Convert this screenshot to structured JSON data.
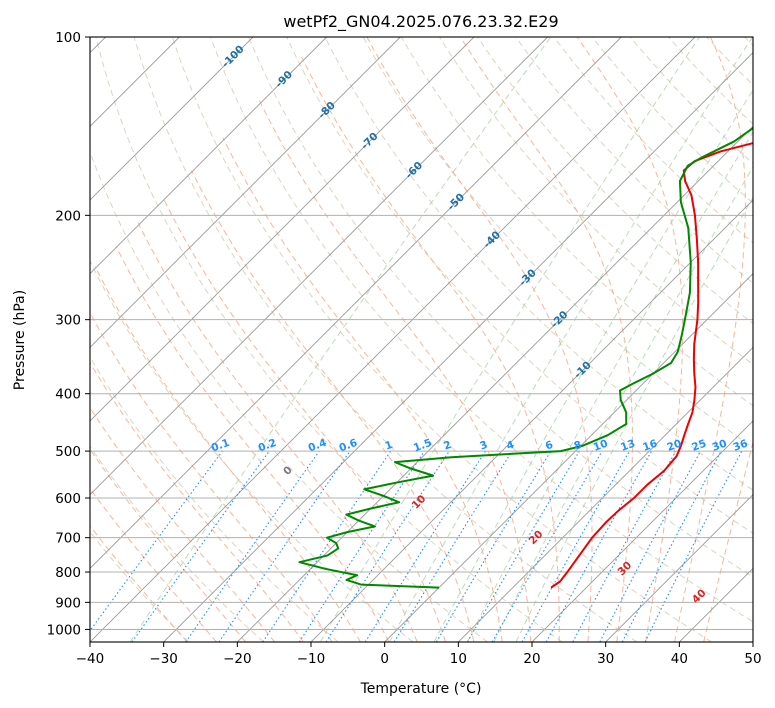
{
  "chart_data": {
    "type": "line",
    "title": "wetPf2_GN04.2025.076.23.32.E29",
    "xlabel": "Temperature (°C)",
    "ylabel": "Pressure (hPa)",
    "xlim": [
      -40,
      50
    ],
    "ylim": [
      1050,
      100
    ],
    "y_scale": "log",
    "grid": true,
    "x_ticks": [
      -40,
      -30,
      -20,
      -10,
      0,
      10,
      20,
      30,
      40,
      50
    ],
    "y_ticks": [
      100,
      200,
      300,
      400,
      500,
      600,
      700,
      800,
      900,
      1000
    ],
    "isotherm_labels": [
      "-100",
      "-90",
      "-80",
      "-70",
      "-60",
      "-50",
      "-40",
      "-30",
      "-20",
      "-10"
    ],
    "isotherm_label_values": [
      -100,
      -90,
      -80,
      -70,
      -60,
      -50,
      -40,
      -30,
      -20,
      -10
    ],
    "mixing_ratio_labels": [
      "0.1",
      "0.2",
      "0.4",
      "0.6",
      "1",
      "1.5",
      "2",
      "3",
      "4",
      "6",
      "8",
      "10",
      "13",
      "16",
      "20",
      "25",
      "30",
      "36"
    ],
    "mixing_ratio_values": [
      0.1,
      0.2,
      0.4,
      0.6,
      1,
      1.5,
      2,
      3,
      4,
      6,
      8,
      10,
      13,
      16,
      20,
      25,
      30,
      36
    ],
    "moist_adiabat_labels": [
      "0",
      "10",
      "20",
      "30",
      "40"
    ],
    "moist_adiabat_values": [
      0,
      10,
      20,
      30,
      40
    ],
    "colors": {
      "temperature": "#ee0000",
      "dewpoint": "#008800",
      "isotherm_label": "#1f6fa8",
      "mixing_ratio": "#1e90ff",
      "moist_adiabat": "#d62728",
      "dry_adiabat": "#d6c9b0",
      "moist_adiabat_lines": "#f5a98c",
      "mixing_green": "#a8d5a8"
    },
    "series": [
      {
        "key": "temperature",
        "points": [
          {
            "p": 850,
            "t": 15.2
          },
          {
            "p": 830,
            "t": 15.6
          },
          {
            "p": 800,
            "t": 15.3
          },
          {
            "p": 760,
            "t": 14.8
          },
          {
            "p": 700,
            "t": 14.0
          },
          {
            "p": 660,
            "t": 13.8
          },
          {
            "p": 630,
            "t": 13.9
          },
          {
            "p": 600,
            "t": 14.3
          },
          {
            "p": 570,
            "t": 14.3
          },
          {
            "p": 540,
            "t": 14.7
          },
          {
            "p": 510,
            "t": 14.4
          },
          {
            "p": 490,
            "t": 13.6
          },
          {
            "p": 470,
            "t": 12.6
          },
          {
            "p": 450,
            "t": 11.6
          },
          {
            "p": 430,
            "t": 10.6
          },
          {
            "p": 410,
            "t": 9.2
          },
          {
            "p": 390,
            "t": 7.6
          },
          {
            "p": 370,
            "t": 5.6
          },
          {
            "p": 350,
            "t": 3.6
          },
          {
            "p": 330,
            "t": 1.6
          },
          {
            "p": 300,
            "t": -1.3
          },
          {
            "p": 280,
            "t": -3.6
          },
          {
            "p": 260,
            "t": -6.2
          },
          {
            "p": 240,
            "t": -9.0
          },
          {
            "p": 220,
            "t": -12.2
          },
          {
            "p": 200,
            "t": -15.8
          },
          {
            "p": 185,
            "t": -19.0
          },
          {
            "p": 175,
            "t": -21.8
          },
          {
            "p": 168,
            "t": -23.4
          },
          {
            "p": 162,
            "t": -23.2
          },
          {
            "p": 156,
            "t": -21.0
          },
          {
            "p": 150,
            "t": -17.0
          },
          {
            "p": 145,
            "t": -12.5
          },
          {
            "p": 140,
            "t": -7.5
          },
          {
            "p": 135,
            "t": -3.0
          },
          {
            "p": 130,
            "t": 0.5
          },
          {
            "p": 125,
            "t": 3.0
          },
          {
            "p": 120,
            "t": 4.5
          },
          {
            "p": 115,
            "t": 6.0
          },
          {
            "p": 108,
            "t": 8.5
          },
          {
            "p": 100,
            "t": 11.0
          }
        ]
      },
      {
        "key": "dewpoint",
        "points": [
          {
            "p": 850,
            "t": 0.0
          },
          {
            "p": 840,
            "t": -11.0
          },
          {
            "p": 825,
            "t": -13.6
          },
          {
            "p": 810,
            "t": -12.8
          },
          {
            "p": 790,
            "t": -18.0
          },
          {
            "p": 770,
            "t": -22.4
          },
          {
            "p": 750,
            "t": -19.5
          },
          {
            "p": 730,
            "t": -19.0
          },
          {
            "p": 715,
            "t": -20.0
          },
          {
            "p": 700,
            "t": -22.0
          },
          {
            "p": 685,
            "t": -20.0
          },
          {
            "p": 670,
            "t": -17.0
          },
          {
            "p": 655,
            "t": -20.0
          },
          {
            "p": 640,
            "t": -22.5
          },
          {
            "p": 625,
            "t": -20.0
          },
          {
            "p": 610,
            "t": -17.0
          },
          {
            "p": 595,
            "t": -20.0
          },
          {
            "p": 580,
            "t": -23.5
          },
          {
            "p": 565,
            "t": -20.0
          },
          {
            "p": 550,
            "t": -16.0
          },
          {
            "p": 535,
            "t": -20.0
          },
          {
            "p": 522,
            "t": -23.0
          },
          {
            "p": 512,
            "t": -16.0
          },
          {
            "p": 500,
            "t": -2.0
          },
          {
            "p": 490,
            "t": 0.2
          },
          {
            "p": 470,
            "t": 2.2
          },
          {
            "p": 450,
            "t": 3.2
          },
          {
            "p": 430,
            "t": 1.6
          },
          {
            "p": 410,
            "t": -0.8
          },
          {
            "p": 395,
            "t": -2.2
          },
          {
            "p": 385,
            "t": -1.4
          },
          {
            "p": 370,
            "t": 0.0
          },
          {
            "p": 355,
            "t": 1.0
          },
          {
            "p": 340,
            "t": 0.4
          },
          {
            "p": 320,
            "t": -1.2
          },
          {
            "p": 300,
            "t": -3.0
          },
          {
            "p": 270,
            "t": -6.0
          },
          {
            "p": 240,
            "t": -10.0
          },
          {
            "p": 210,
            "t": -15.0
          },
          {
            "p": 190,
            "t": -19.5
          },
          {
            "p": 175,
            "t": -22.5
          },
          {
            "p": 165,
            "t": -23.5
          },
          {
            "p": 160,
            "t": -22.8
          },
          {
            "p": 150,
            "t": -20.5
          },
          {
            "p": 140,
            "t": -19.5
          },
          {
            "p": 130,
            "t": -20.5
          },
          {
            "p": 122,
            "t": -19.5
          },
          {
            "p": 115,
            "t": -17.0
          },
          {
            "p": 108,
            "t": -14.0
          },
          {
            "p": 100,
            "t": -11.0
          }
        ]
      }
    ]
  }
}
